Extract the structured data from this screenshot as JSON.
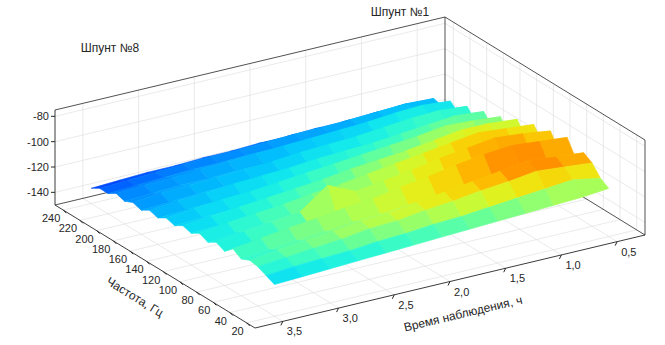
{
  "chart_data": {
    "type": "surface",
    "annotations": [
      "Шпунт №1",
      "Шпунт №8"
    ],
    "x_label": "Частота, Гц",
    "y_label": "Время наблюдения, ч",
    "x": [
      20,
      30,
      40,
      50,
      60,
      70,
      80,
      90,
      100,
      110,
      120,
      130,
      140,
      150,
      160,
      170,
      180,
      190,
      200,
      210,
      220,
      230,
      240
    ],
    "y": [
      0.5,
      0.75,
      1.0,
      1.25,
      1.5,
      1.75,
      2.0,
      2.25,
      2.5,
      2.75,
      3.0,
      3.25,
      3.5
    ],
    "z": [
      [
        -112,
        -108,
        -100,
        -96,
        -104,
        -92,
        -106,
        -95,
        -108,
        -98,
        -112,
        -102,
        -118,
        -108,
        -120,
        -112,
        -124,
        -116,
        -126,
        -120,
        -128,
        -126,
        -132
      ],
      [
        -114,
        -104,
        -98,
        -94,
        -102,
        -90,
        -104,
        -92,
        -106,
        -96,
        -110,
        -100,
        -116,
        -106,
        -119,
        -110,
        -122,
        -114,
        -125,
        -118,
        -127,
        -125,
        -131
      ],
      [
        -115,
        -106,
        -96,
        -92,
        -100,
        -88,
        -102,
        -90,
        -104,
        -94,
        -108,
        -100,
        -114,
        -105,
        -118,
        -112,
        -122,
        -115,
        -124,
        -119,
        -127,
        -126,
        -132
      ],
      [
        -116,
        -108,
        -99,
        -95,
        -103,
        -90,
        -105,
        -93,
        -106,
        -97,
        -110,
        -103,
        -116,
        -108,
        -120,
        -114,
        -123,
        -117,
        -126,
        -121,
        -128,
        -127,
        -133
      ],
      [
        -117,
        -110,
        -101,
        -98,
        -105,
        -93,
        -107,
        -96,
        -108,
        -100,
        -112,
        -106,
        -118,
        -110,
        -121,
        -116,
        -124,
        -119,
        -127,
        -122,
        -129,
        -128,
        -133
      ],
      [
        -118,
        -112,
        -104,
        -101,
        -108,
        -97,
        -110,
        -100,
        -111,
        -103,
        -114,
        -108,
        -119,
        -112,
        -122,
        -117,
        -125,
        -120,
        -127,
        -123,
        -129,
        -128,
        -134
      ],
      [
        -119,
        -113,
        -106,
        -104,
        -110,
        -100,
        -112,
        -103,
        -113,
        -106,
        -116,
        -110,
        -120,
        -114,
        -123,
        -118,
        -126,
        -121,
        -128,
        -124,
        -130,
        -129,
        -134
      ],
      [
        -120,
        -115,
        -109,
        -107,
        -112,
        -104,
        -114,
        -106,
        -115,
        -109,
        -118,
        -113,
        -122,
        -116,
        -124,
        -120,
        -127,
        -123,
        -129,
        -125,
        -130,
        -130,
        -135
      ],
      [
        -121,
        -116,
        -110,
        -108,
        -113,
        -106,
        -115,
        -96,
        -116,
        -111,
        -119,
        -115,
        -123,
        -118,
        -125,
        -121,
        -128,
        -124,
        -129,
        -126,
        -131,
        -130,
        -135
      ],
      [
        -122,
        -118,
        -113,
        -111,
        -115,
        -109,
        -117,
        -112,
        -118,
        -114,
        -121,
        -117,
        -124,
        -120,
        -126,
        -122,
        -128,
        -125,
        -130,
        -127,
        -131,
        -131,
        -136
      ],
      [
        -123,
        -119,
        -115,
        -113,
        -117,
        -111,
        -119,
        -115,
        -120,
        -116,
        -122,
        -119,
        -125,
        -121,
        -127,
        -124,
        -129,
        -126,
        -130,
        -128,
        -132,
        -132,
        -136
      ],
      [
        -124,
        -120,
        -117,
        -115,
        -119,
        -114,
        -121,
        -117,
        -122,
        -118,
        -124,
        -121,
        -126,
        -123,
        -128,
        -125,
        -130,
        -127,
        -131,
        -129,
        -133,
        -133,
        -137
      ],
      [
        -125,
        -122,
        -119,
        -118,
        -121,
        -117,
        -123,
        -120,
        -124,
        -121,
        -125,
        -123,
        -127,
        -125,
        -129,
        -127,
        -131,
        -129,
        -132,
        -130,
        -134,
        -134,
        -138
      ]
    ],
    "xlim": [
      10,
      250
    ],
    "ylim": [
      0.25,
      3.75
    ],
    "zlim": [
      -150,
      -75
    ],
    "xticks": [
      20,
      40,
      60,
      80,
      100,
      120,
      140,
      160,
      180,
      200,
      220,
      240
    ],
    "yticks": [
      {
        "value": 0.5,
        "label": "0,5"
      },
      {
        "value": 1.0,
        "label": "1,0"
      },
      {
        "value": 1.5,
        "label": "1,5"
      },
      {
        "value": 2.0,
        "label": "2,0"
      },
      {
        "value": 2.5,
        "label": "2,5"
      },
      {
        "value": 3.0,
        "label": "3,0"
      },
      {
        "value": 3.5,
        "label": "3,5"
      }
    ],
    "zticks": [
      -140,
      -120,
      -100,
      -80
    ],
    "grid": true
  }
}
